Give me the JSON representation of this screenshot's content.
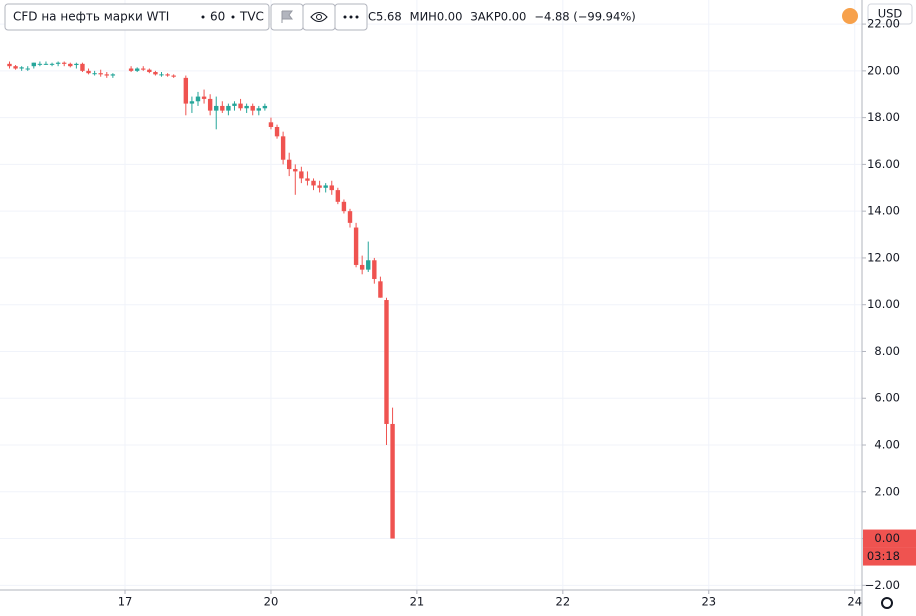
{
  "chart_data": {
    "type": "candlestick",
    "symbol": "CFD на нефть марки WTI",
    "interval": "60",
    "exchange": "TVC",
    "legend": [
      "С5.68",
      "МИН0.00",
      "ЗАКР0.00",
      "−4.88 (−99.94%)"
    ],
    "currency": "USD",
    "price_label": {
      "value": 0,
      "label": "0.00"
    },
    "countdown": "03:18",
    "up_color": "#26a69a",
    "down_color": "#ef5350",
    "x": [
      -19,
      -18,
      -17,
      -16,
      -15,
      -14,
      -13,
      -12,
      -11,
      -10,
      -9,
      -8,
      -7,
      -6,
      -5,
      -4,
      -3,
      -2,
      1,
      2,
      3,
      4,
      5,
      6,
      7,
      8,
      10,
      11,
      12,
      13,
      14,
      15,
      16,
      17,
      18,
      19,
      20,
      21,
      22,
      23,
      24,
      25,
      26,
      27,
      28,
      29,
      30,
      31,
      32,
      33,
      34,
      35,
      36,
      37,
      38,
      39,
      40,
      41,
      42,
      43,
      44
    ],
    "open": [
      20.3,
      20.2,
      20.1,
      20.1,
      20.2,
      20.3,
      20.3,
      20.3,
      20.3,
      20.35,
      20.3,
      20.25,
      20.3,
      20.0,
      19.9,
      19.9,
      19.85,
      19.8,
      20.1,
      20.0,
      20.1,
      20.05,
      19.95,
      19.85,
      19.85,
      19.8,
      19.7,
      18.6,
      18.7,
      18.9,
      18.8,
      18.3,
      18.5,
      18.3,
      18.5,
      18.6,
      18.4,
      18.5,
      18.3,
      18.4,
      17.8,
      17.6,
      17.2,
      16.2,
      15.8,
      15.7,
      15.4,
      15.3,
      15.1,
      15.0,
      15.1,
      14.9,
      14.4,
      14.0,
      13.3,
      11.7,
      11.5,
      11.9,
      11.0,
      10.2,
      4.9
    ],
    "high": [
      20.4,
      20.25,
      20.2,
      20.2,
      20.35,
      20.4,
      20.4,
      20.35,
      20.4,
      20.4,
      20.35,
      20.35,
      20.35,
      20.1,
      20.0,
      20.05,
      19.95,
      19.9,
      20.2,
      20.15,
      20.2,
      20.1,
      20.0,
      19.95,
      19.9,
      19.85,
      19.8,
      18.9,
      19.1,
      19.2,
      19.0,
      18.9,
      18.7,
      18.6,
      18.7,
      18.8,
      18.6,
      18.6,
      18.5,
      18.6,
      18.0,
      17.7,
      17.4,
      16.5,
      16.0,
      15.9,
      15.7,
      15.4,
      15.3,
      15.2,
      15.3,
      15.0,
      14.5,
      14.1,
      13.5,
      12.1,
      12.7,
      12.0,
      11.2,
      10.3,
      5.6
    ],
    "low": [
      20.1,
      20.05,
      20.0,
      20.0,
      20.1,
      20.2,
      20.25,
      20.2,
      20.2,
      20.2,
      20.15,
      20.1,
      19.95,
      19.85,
      19.8,
      19.75,
      19.7,
      19.7,
      19.95,
      19.95,
      20.0,
      19.9,
      19.8,
      19.75,
      19.75,
      19.7,
      18.1,
      18.2,
      18.5,
      18.6,
      18.1,
      17.5,
      18.2,
      18.1,
      18.3,
      18.3,
      18.2,
      18.1,
      18.1,
      18.3,
      17.5,
      17.1,
      16.0,
      15.5,
      14.7,
      15.2,
      15.1,
      14.9,
      14.8,
      14.8,
      14.7,
      14.3,
      13.9,
      13.3,
      11.6,
      11.3,
      11.4,
      10.9,
      10.3,
      4.0,
      0.0
    ],
    "close": [
      20.2,
      20.1,
      20.15,
      20.1,
      20.35,
      20.3,
      20.3,
      20.3,
      20.35,
      20.3,
      20.2,
      20.3,
      20.0,
      19.9,
      19.9,
      19.85,
      19.8,
      19.85,
      20.0,
      20.1,
      20.05,
      19.95,
      19.85,
      19.85,
      19.8,
      19.75,
      18.6,
      18.7,
      18.9,
      18.8,
      18.3,
      18.5,
      18.3,
      18.5,
      18.6,
      18.4,
      18.5,
      18.3,
      18.4,
      18.5,
      17.6,
      17.2,
      16.2,
      15.8,
      15.7,
      15.4,
      15.3,
      15.1,
      15.0,
      15.1,
      14.9,
      14.4,
      14.0,
      13.5,
      11.7,
      11.5,
      11.9,
      11.1,
      10.3,
      4.9,
      0.0
    ],
    "xlim": [
      -20.56,
      121.2
    ],
    "xticks": [
      {
        "value": 0,
        "label": "17"
      },
      {
        "value": 24,
        "label": "20"
      },
      {
        "value": 48,
        "label": "21"
      },
      {
        "value": 72,
        "label": "22"
      },
      {
        "value": 96,
        "label": "23"
      },
      {
        "value": 120,
        "label": "24"
      }
    ],
    "ylim": [
      -2.2,
      23.03
    ],
    "yticks": [
      {
        "value": -2,
        "label": "−2.00"
      },
      {
        "value": 0,
        "label": "0.00"
      },
      {
        "value": 2,
        "label": "2.00"
      },
      {
        "value": 4,
        "label": "4.00"
      },
      {
        "value": 6,
        "label": "6.00"
      },
      {
        "value": 8,
        "label": "8.00"
      },
      {
        "value": 10,
        "label": "10.00"
      },
      {
        "value": 12,
        "label": "12.00"
      },
      {
        "value": 14,
        "label": "14.00"
      },
      {
        "value": 16,
        "label": "16.00"
      },
      {
        "value": 18,
        "label": "18.00"
      },
      {
        "value": 20,
        "label": "20.00"
      },
      {
        "value": 22,
        "label": "22.00"
      }
    ],
    "grid": true
  }
}
